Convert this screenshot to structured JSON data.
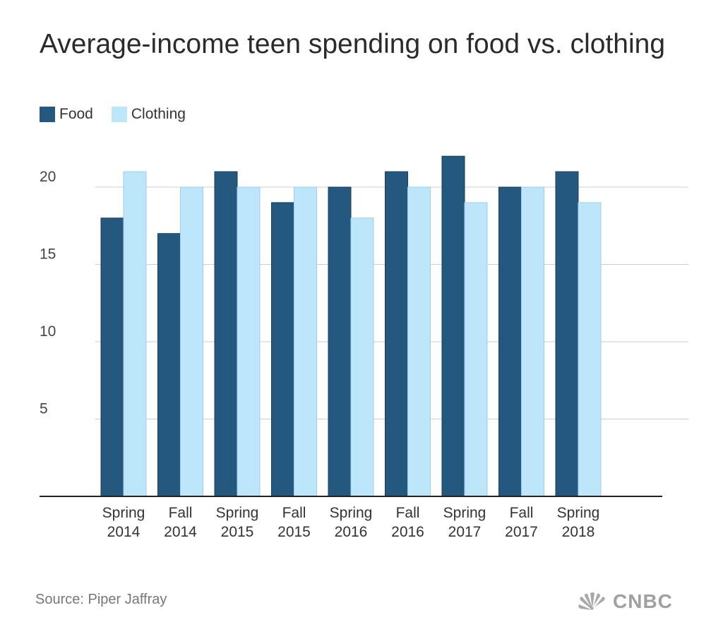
{
  "colors": {
    "food": "#25587f",
    "clothing": "#bde6fb",
    "grid": "#cccccc",
    "axis": "#222222"
  },
  "footer": {
    "source": "Source: Piper Jaffray",
    "logo": "CNBC",
    "logo_icon": "peacock-icon"
  },
  "chart_data": {
    "type": "bar",
    "title": "Average-income teen spending on food vs. clothing",
    "xlabel": "",
    "ylabel": "",
    "ylim": [
      0,
      25
    ],
    "yticks": [
      "5",
      "10",
      "15",
      "20"
    ],
    "grid": true,
    "legend_position": "top-left",
    "categories": [
      [
        "Spring",
        "2014"
      ],
      [
        "Fall",
        "2014"
      ],
      [
        "Spring",
        "2015"
      ],
      [
        "Fall",
        "2015"
      ],
      [
        "Spring",
        "2016"
      ],
      [
        "Fall",
        "2016"
      ],
      [
        "Spring",
        "2017"
      ],
      [
        "Fall",
        "2017"
      ],
      [
        "Spring",
        "2018"
      ]
    ],
    "series": [
      {
        "name": "Food",
        "values": [
          18,
          17,
          21,
          19,
          20,
          21,
          22,
          20,
          21
        ]
      },
      {
        "name": "Clothing",
        "values": [
          21,
          20,
          20,
          20,
          18,
          20,
          19,
          20,
          19
        ]
      }
    ]
  }
}
